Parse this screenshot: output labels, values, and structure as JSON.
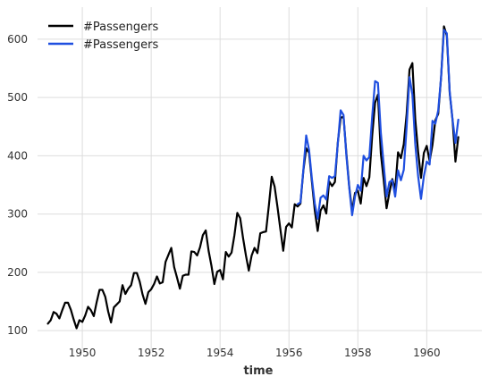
{
  "chart_data": {
    "type": "line",
    "xlabel": "time",
    "ylabel": "",
    "xlim": [
      1948.7,
      1961.6
    ],
    "ylim": [
      65,
      655
    ],
    "x_ticks": [
      1950,
      1952,
      1954,
      1956,
      1958,
      1960
    ],
    "x_tick_labels": [
      "1950",
      "1952",
      "1954",
      "1956",
      "1958",
      "1960"
    ],
    "y_ticks": [
      100,
      200,
      300,
      400,
      500,
      600
    ],
    "y_tick_labels": [
      "100",
      "200",
      "300",
      "400",
      "500",
      "600"
    ],
    "grid": true,
    "legend": "top-left",
    "series": [
      {
        "name": "#Passengers",
        "color": "#000000",
        "start": "1949-01",
        "step": "month",
        "values": [
          112,
          118,
          132,
          129,
          121,
          135,
          148,
          148,
          136,
          119,
          104,
          118,
          115,
          126,
          141,
          135,
          125,
          149,
          170,
          170,
          158,
          133,
          114,
          140,
          145,
          150,
          178,
          163,
          172,
          178,
          199,
          199,
          184,
          162,
          146,
          166,
          171,
          180,
          193,
          181,
          183,
          218,
          230,
          242,
          209,
          191,
          172,
          194,
          196,
          196,
          236,
          235,
          229,
          243,
          264,
          272,
          237,
          211,
          180,
          201,
          204,
          188,
          235,
          227,
          234,
          264,
          302,
          293,
          259,
          229,
          203,
          229,
          242,
          233,
          267,
          269,
          270,
          315,
          364,
          347,
          312,
          274,
          237,
          278,
          284,
          277,
          317,
          313,
          318,
          374,
          413,
          405,
          355,
          306,
          271,
          306,
          315,
          301,
          356,
          348,
          355,
          422,
          465,
          467,
          404,
          347,
          305,
          336,
          340,
          318,
          362,
          348,
          363,
          435,
          491,
          505,
          404,
          359,
          310,
          337,
          360,
          342,
          406,
          396,
          420,
          472,
          548,
          559,
          463,
          407,
          362,
          405,
          417,
          391,
          419,
          461,
          472,
          535,
          622,
          606,
          508,
          461,
          390,
          432
        ]
      },
      {
        "name": "#Passengers",
        "color": "#1f4fe0",
        "start": "1956-04",
        "step": "month",
        "values": [
          317,
          320,
          375,
          435,
          410,
          360,
          318,
          292,
          328,
          332,
          325,
          365,
          362,
          365,
          420,
          478,
          470,
          400,
          345,
          298,
          330,
          350,
          340,
          400,
          392,
          398,
          468,
          528,
          525,
          440,
          385,
          330,
          355,
          358,
          330,
          375,
          358,
          376,
          450,
          535,
          505,
          420,
          365,
          326,
          365,
          390,
          385,
          460,
          455,
          478,
          535,
          616,
          610,
          510,
          462,
          422,
          462
        ]
      }
    ]
  }
}
